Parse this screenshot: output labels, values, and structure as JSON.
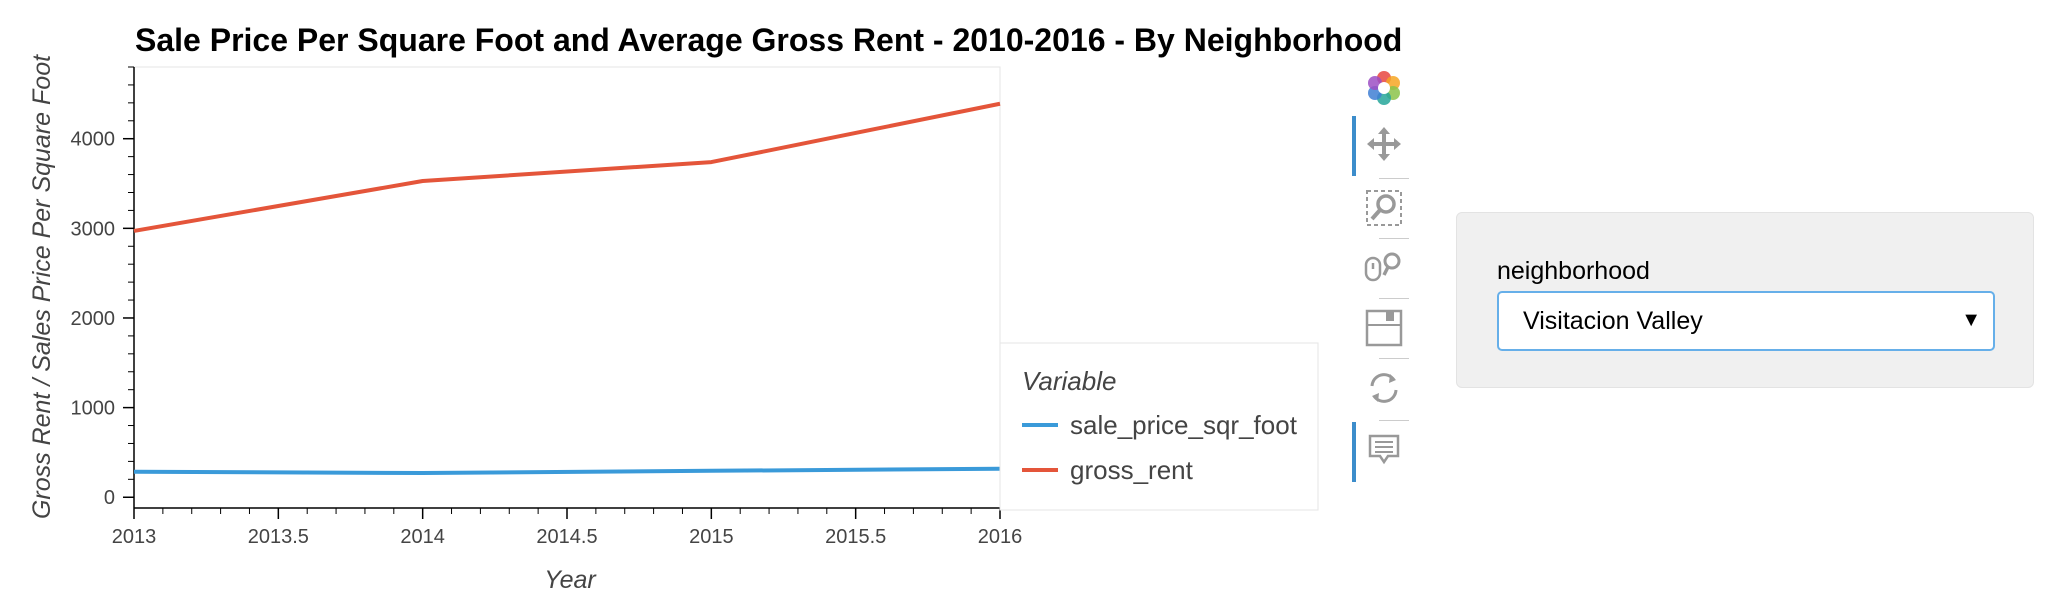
{
  "chart_data": {
    "type": "line",
    "title": "Sale Price Per Square Foot and Average Gross Rent - 2010-2016 - By Neighborhood",
    "xlabel": "Year",
    "ylabel": "Gross Rent / Sales Price Per Square Foot",
    "xlim": [
      2013,
      2016
    ],
    "ylim": [
      -120,
      4800
    ],
    "x_ticks": [
      "2013",
      "2013.5",
      "2014",
      "2014.5",
      "2015",
      "2015.5",
      "2016"
    ],
    "y_ticks": [
      "0",
      "1000",
      "2000",
      "3000",
      "4000"
    ],
    "grid": false,
    "legend_title": "Variable",
    "legend_position": "bottom-right outside",
    "x": [
      2013,
      2014,
      2015,
      2016
    ],
    "series": [
      {
        "name": "sale_price_sqr_foot",
        "color": "#3a9ad9",
        "values": [
          285,
          270,
          295,
          318
        ]
      },
      {
        "name": "gross_rent",
        "color": "#e4553a",
        "values": [
          2971,
          3528,
          3739,
          4390
        ]
      }
    ]
  },
  "toolbar": {
    "tools": [
      {
        "name": "bokeh-logo-icon",
        "active": false
      },
      {
        "name": "pan-icon",
        "active": true
      },
      {
        "name": "box-zoom-icon",
        "active": false
      },
      {
        "name": "wheel-zoom-icon",
        "active": false
      },
      {
        "name": "save-icon",
        "active": false
      },
      {
        "name": "reset-icon",
        "active": false
      },
      {
        "name": "hover-icon",
        "active": true
      }
    ]
  },
  "widget": {
    "label": "neighborhood",
    "selected": "Visitacion Valley"
  }
}
